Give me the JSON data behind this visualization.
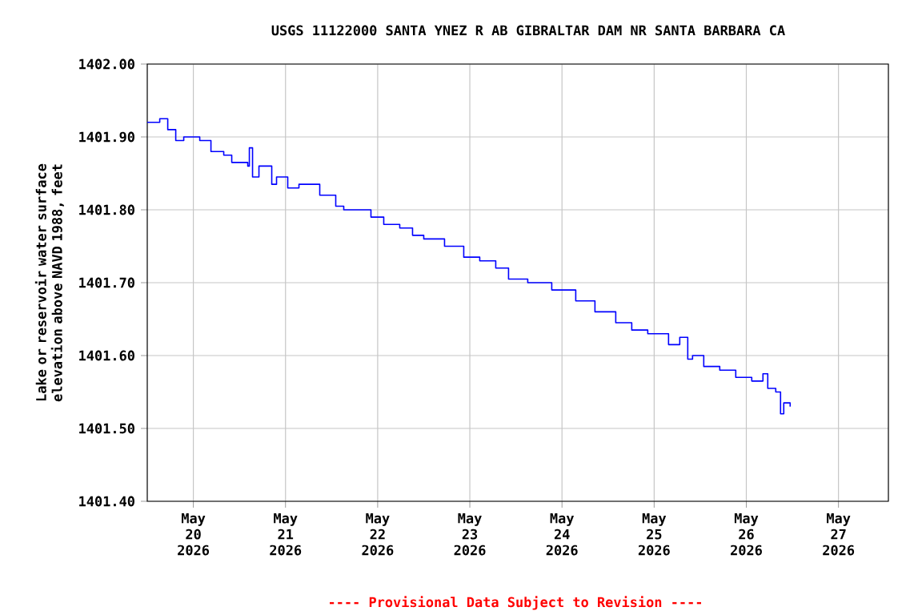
{
  "chart_data": {
    "type": "step",
    "title": "USGS 11122000 SANTA YNEZ R AB GIBRALTAR DAM NR SANTA BARBARA CA",
    "ylabel": "Lake or reservoir water surface elevation above NAVD 1988, feet",
    "annotations": [
      "---- Provisional Data Subject to Revision ----"
    ],
    "x": [
      "2026-05-19T12:00",
      "2026-05-19T15:15",
      "2026-05-19T17:20",
      "2026-05-19T19:25",
      "2026-05-19T21:30",
      "2026-05-20T01:40",
      "2026-05-20T04:35",
      "2026-05-20T07:55",
      "2026-05-20T10:00",
      "2026-05-20T14:10",
      "2026-05-20T14:35",
      "2026-05-20T15:25",
      "2026-05-20T17:05",
      "2026-05-20T20:25",
      "2026-05-20T21:40",
      "2026-05-21T00:35",
      "2026-05-21T03:30",
      "2026-05-21T08:55",
      "2026-05-21T13:05",
      "2026-05-21T15:10",
      "2026-05-21T22:15",
      "2026-05-22T01:35",
      "2026-05-22T05:45",
      "2026-05-22T09:05",
      "2026-05-22T12:00",
      "2026-05-22T17:25",
      "2026-05-22T22:25",
      "2026-05-23T02:35",
      "2026-05-23T06:45",
      "2026-05-23T10:05",
      "2026-05-23T15:05",
      "2026-05-23T21:20",
      "2026-05-24T03:35",
      "2026-05-24T08:35",
      "2026-05-24T14:00",
      "2026-05-24T18:10",
      "2026-05-24T22:20",
      "2026-05-25T03:45",
      "2026-05-25T06:40",
      "2026-05-25T08:45",
      "2026-05-25T10:00",
      "2026-05-25T12:55",
      "2026-05-25T17:05",
      "2026-05-25T21:15",
      "2026-05-26T01:25",
      "2026-05-26T04:20",
      "2026-05-26T05:35",
      "2026-05-26T07:40",
      "2026-05-26T08:55",
      "2026-05-26T09:45",
      "2026-05-26T11:25"
    ],
    "series": [
      {
        "color": "#0000ff",
        "values": [
          1401.92,
          1401.925,
          1401.91,
          1401.895,
          1401.9,
          1401.895,
          1401.88,
          1401.875,
          1401.865,
          1401.86,
          1401.885,
          1401.845,
          1401.86,
          1401.835,
          1401.845,
          1401.83,
          1401.835,
          1401.82,
          1401.805,
          1401.8,
          1401.79,
          1401.78,
          1401.775,
          1401.765,
          1401.76,
          1401.75,
          1401.735,
          1401.73,
          1401.72,
          1401.705,
          1401.7,
          1401.69,
          1401.675,
          1401.66,
          1401.645,
          1401.635,
          1401.63,
          1401.615,
          1401.625,
          1401.595,
          1401.6,
          1401.585,
          1401.58,
          1401.57,
          1401.565,
          1401.575,
          1401.555,
          1401.55,
          1401.52,
          1401.535,
          1401.53
        ]
      }
    ],
    "xlim": [
      "2026-05-19T12:00",
      "2026-05-27T13:00"
    ],
    "xticks": [
      {
        "value": "2026-05-20",
        "label": "May 20 2026"
      },
      {
        "value": "2026-05-21",
        "label": "May 21 2026"
      },
      {
        "value": "2026-05-22",
        "label": "May 22 2026"
      },
      {
        "value": "2026-05-23",
        "label": "May 23 2026"
      },
      {
        "value": "2026-05-24",
        "label": "May 24 2026"
      },
      {
        "value": "2026-05-25",
        "label": "May 25 2026"
      },
      {
        "value": "2026-05-26",
        "label": "May 26 2026"
      },
      {
        "value": "2026-05-27",
        "label": "May 27 2026"
      }
    ],
    "ylim": [
      1401.4,
      1402.0
    ],
    "yticks": [
      {
        "value": 1401.4,
        "label": "1401.40"
      },
      {
        "value": 1401.5,
        "label": "1401.50"
      },
      {
        "value": 1401.6,
        "label": "1401.60"
      },
      {
        "value": 1401.7,
        "label": "1401.70"
      },
      {
        "value": 1401.8,
        "label": "1401.80"
      },
      {
        "value": 1401.9,
        "label": "1401.90"
      },
      {
        "value": 1402.0,
        "label": "1402.00"
      }
    ],
    "grid": true,
    "line_style": "solid"
  }
}
